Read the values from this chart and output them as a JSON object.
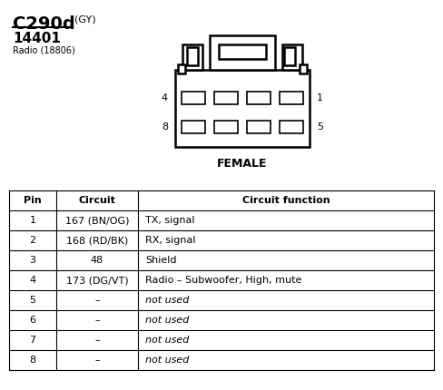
{
  "title": "C290d",
  "title_suffix": "(GY)",
  "subtitle": "14401",
  "subtitle2": "Radio (18806)",
  "female_label": "FEMALE",
  "table": {
    "headers": [
      "Pin",
      "Circuit",
      "Circuit function"
    ],
    "rows": [
      [
        "1",
        "167 (BN/OG)",
        "TX, signal"
      ],
      [
        "2",
        "168 (RD/BK)",
        "RX, signal"
      ],
      [
        "3",
        "48",
        "Shield"
      ],
      [
        "4",
        "173 (DG/VT)",
        "Radio – Subwoofer, High, mute"
      ],
      [
        "5",
        "–",
        "not used"
      ],
      [
        "6",
        "–",
        "not used"
      ],
      [
        "7",
        "–",
        "not used"
      ],
      [
        "8",
        "–",
        "not used"
      ]
    ]
  },
  "background_color": "#ffffff",
  "text_color": "#000000",
  "line_color": "#000000"
}
